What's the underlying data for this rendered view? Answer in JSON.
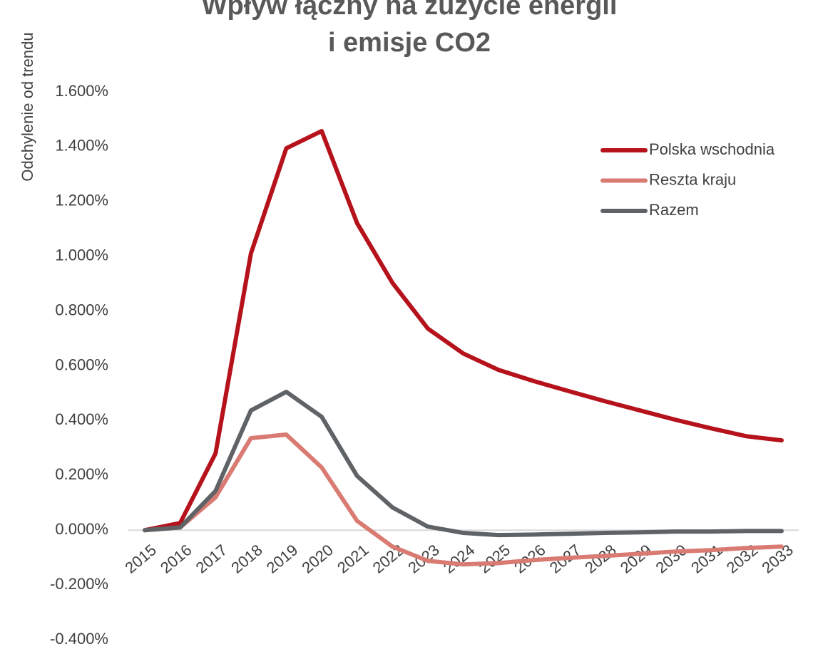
{
  "chart_data": {
    "type": "line",
    "title": [
      "Wpływ łączny na zużycie energii",
      "i emisje CO2"
    ],
    "y_label": "Odchylenie od trendu",
    "x": [
      "2015",
      "2016",
      "2017",
      "2018",
      "2019",
      "2020",
      "2021",
      "2022",
      "2023",
      "2024",
      "2025",
      "2026",
      "2027",
      "2028",
      "2029",
      "2030",
      "2031",
      "2032",
      "2033"
    ],
    "series": [
      {
        "name": "Polska wschodnia",
        "color": "#b5121b",
        "values": [
          0,
          0.026,
          0.28,
          1.01,
          1.394,
          1.457,
          1.121,
          0.903,
          0.736,
          0.645,
          0.585,
          0.544,
          0.507,
          0.471,
          0.437,
          0.403,
          0.372,
          0.343,
          0.328
        ]
      },
      {
        "name": "Reszta kraju",
        "color": "#d97b72",
        "values": [
          0,
          0.01,
          0.12,
          0.336,
          0.349,
          0.229,
          0.034,
          -0.06,
          -0.112,
          -0.125,
          -0.12,
          -0.109,
          -0.101,
          -0.094,
          -0.086,
          -0.078,
          -0.073,
          -0.065,
          -0.06
        ]
      },
      {
        "name": "Razem",
        "color": "#5f6366",
        "values": [
          0,
          0.01,
          0.143,
          0.437,
          0.505,
          0.414,
          0.198,
          0.083,
          0.013,
          -0.01,
          -0.018,
          -0.016,
          -0.013,
          -0.01,
          -0.008,
          -0.005,
          -0.005,
          -0.003,
          -0.003
        ]
      }
    ],
    "ylim": [
      -0.4,
      1.6
    ],
    "yticks": [
      {
        "value": -0.4,
        "label": "-0.400%"
      },
      {
        "value": -0.2,
        "label": "-0.200%"
      },
      {
        "value": 0,
        "label": "0.000%"
      },
      {
        "value": 0.2,
        "label": "0.200%"
      },
      {
        "value": 0.4,
        "label": "0.400%"
      },
      {
        "value": 0.6,
        "label": "0.600%"
      },
      {
        "value": 0.8,
        "label": "0.800%"
      },
      {
        "value": 1,
        "label": "1.000%"
      },
      {
        "value": 1.2,
        "label": "1.200%"
      },
      {
        "value": 1.4,
        "label": "1.400%"
      },
      {
        "value": 1.6,
        "label": "1.600%"
      }
    ],
    "grid": false,
    "legend": "upper right"
  }
}
